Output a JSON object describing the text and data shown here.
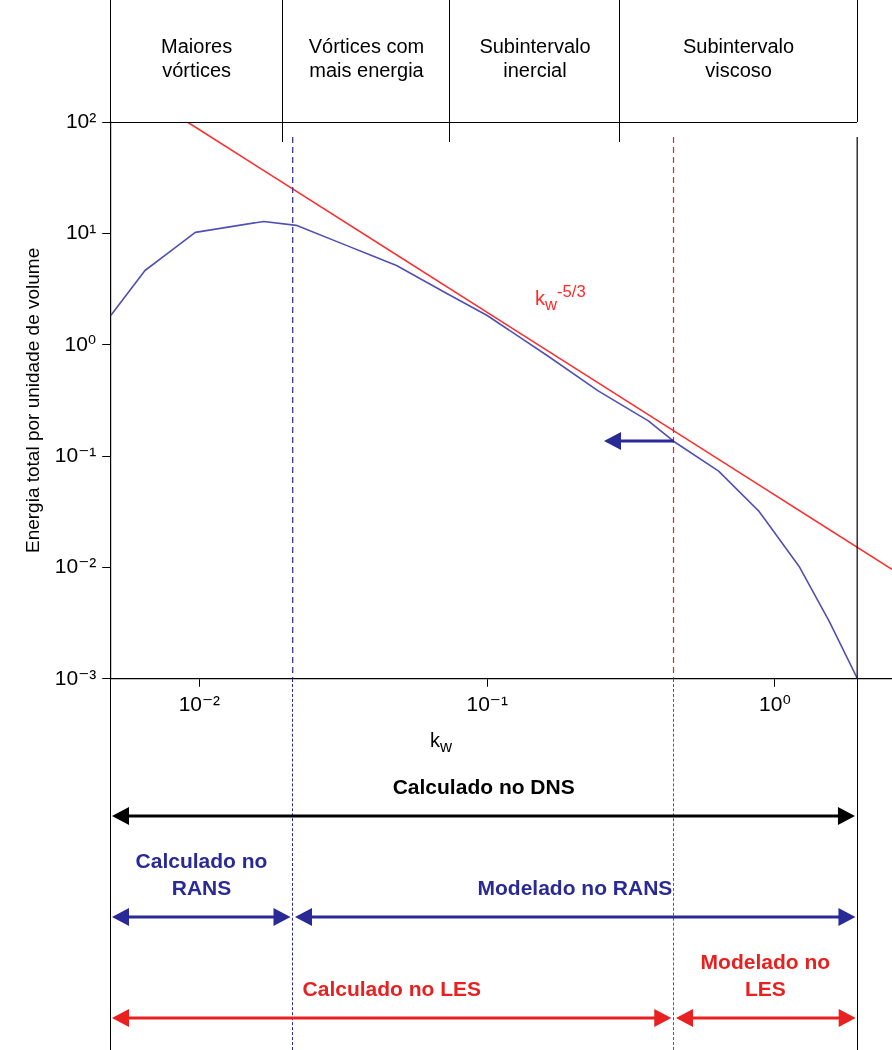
{
  "chart_data": {
    "type": "line",
    "xlabel": "k$_{w}$",
    "ylabel": "Energia total por unidade de volume",
    "log": "xy",
    "xlim": [
      0.0049,
      2.55
    ],
    "ylim": [
      0.001,
      100
    ],
    "xticks": [
      {
        "value": 0.01,
        "label": "10⁻²"
      },
      {
        "value": 0.1,
        "label": "10⁻¹"
      },
      {
        "value": 1,
        "label": "10⁰"
      }
    ],
    "yticks": [
      {
        "value": 0.001,
        "label": "10⁻³"
      },
      {
        "value": 0.01,
        "label": "10⁻²"
      },
      {
        "value": 0.1,
        "label": "10⁻¹"
      },
      {
        "value": 1,
        "label": "10⁰"
      },
      {
        "value": 10,
        "label": "10¹"
      },
      {
        "value": 100,
        "label": "10²"
      }
    ],
    "grid": false,
    "legend": false,
    "marker": "none",
    "series": [
      {
        "color": "#5050b4",
        "x": [
          0.00492,
          0.00647,
          0.00968,
          0.01675,
          0.0217,
          0.0324,
          0.0484,
          0.0724,
          0.1,
          0.162,
          0.243,
          0.363,
          0.444,
          0.637,
          0.879,
          1.213,
          1.545,
          1.935
        ],
        "values": [
          1.83,
          4.64,
          10.2,
          12.8,
          11.8,
          7.8,
          5.15,
          2.88,
          1.83,
          0.796,
          0.385,
          0.207,
          0.136,
          0.0733,
          0.032,
          0.0102,
          0.00326,
          0.001
        ]
      },
      {
        "type": "line",
        "color": "#ff2a2a",
        "x": [
          0.00908,
          2.55
        ],
        "values": [
          100,
          0.0096
        ]
      }
    ],
    "ref_lines": [
      {
        "axis": "x",
        "value": 0.0211,
        "color": "#2a2a96",
        "line_style": "dashed"
      },
      {
        "axis": "x",
        "value": 0.444,
        "color": "#e82020",
        "line_style": "dashed"
      },
      {
        "axis": "x",
        "value": 1.93,
        "color": "#000000",
        "line_style": "solid"
      }
    ],
    "annotations": [
      "Maiores vórtices",
      "Vórtices com mais energia",
      "Subintervalo inercial",
      "Subintervalo viscoso",
      "k$_{w}$$^{-5/3}$",
      "Calculado no DNS",
      "Calculado no RANS",
      "Modelado no RANS",
      "Calculado no LES",
      "Modelado no LES"
    ]
  }
}
